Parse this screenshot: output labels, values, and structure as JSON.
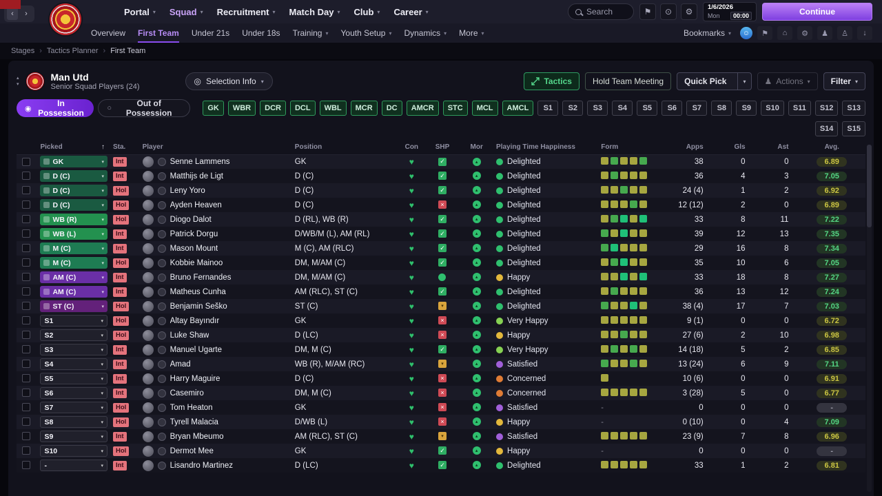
{
  "topbar": {
    "nav": [
      {
        "label": "Portal",
        "chevron": true
      },
      {
        "label": "Squad",
        "chevron": true,
        "active": true
      },
      {
        "label": "Recruitment",
        "chevron": true
      },
      {
        "label": "Match Day",
        "chevron": true
      },
      {
        "label": "Club",
        "chevron": true
      },
      {
        "label": "Career",
        "chevron": true
      }
    ],
    "search_placeholder": "Search",
    "icons": [
      "bookmark",
      "globe",
      "gear"
    ],
    "date": "1/6/2026",
    "day": "Mon",
    "time": "00:00",
    "continue_label": "Continue"
  },
  "subnav": {
    "items": [
      {
        "label": "Overview"
      },
      {
        "label": "First Team",
        "active": true
      },
      {
        "label": "Under 21s"
      },
      {
        "label": "Under 18s"
      },
      {
        "label": "Training",
        "chevron": true
      },
      {
        "label": "Youth Setup",
        "chevron": true
      },
      {
        "label": "Dynamics",
        "chevron": true
      },
      {
        "label": "More",
        "chevron": true
      }
    ],
    "bookmarks_label": "Bookmarks",
    "icons": [
      "face",
      "flag",
      "house",
      "gear",
      "people",
      "person",
      "download"
    ]
  },
  "breadcrumb": {
    "items": [
      "Stages",
      "Tactics Planner",
      "First Team"
    ]
  },
  "header": {
    "team_name": "Man Utd",
    "subtitle": "Senior Squad Players (24)",
    "selection_info_label": "Selection Info",
    "tactics_label": "Tactics",
    "hold_meeting_label": "Hold Team Meeting",
    "quick_pick_label": "Quick Pick",
    "actions_label": "Actions",
    "filter_label": "Filter"
  },
  "filters": {
    "in_possession_label": "In Possession",
    "out_of_possession_label": "Out of Possession",
    "positions": [
      "GK",
      "WBR",
      "DCR",
      "DCL",
      "WBL",
      "MCR",
      "DC",
      "AMCR",
      "STC",
      "MCL",
      "AMCL"
    ],
    "slots_row1": [
      "S1",
      "S2",
      "S3",
      "S4",
      "S5",
      "S6",
      "S7",
      "S8",
      "S9",
      "S10",
      "S11",
      "S12",
      "S13"
    ],
    "slots_row2": [
      "S14",
      "S15"
    ]
  },
  "colors": {
    "accent_purple": "#8a3df2",
    "accent_green": "#2f9e62",
    "status_badge": "#e4737c",
    "continue_top": "#bb80f6",
    "continue_bottom": "#7e3fe0"
  },
  "table": {
    "columns": [
      "Picked",
      "Sta.",
      "Player",
      "Position",
      "Con",
      "SHP",
      "Mor",
      "Playing Time Happiness",
      "Form",
      "Apps",
      "Gls",
      "Ast",
      "Avg."
    ],
    "rows": [
      {
        "picked": "GK",
        "picked_style": "gk",
        "sta": "Int",
        "player": "Senne Lammens",
        "position": "GK",
        "shp": "check",
        "happiness": "Delighted",
        "happiness_style": "delighted",
        "form": [
          "o",
          "g",
          "o",
          "o",
          "g"
        ],
        "apps": "38",
        "gls": "0",
        "ast": "0",
        "avg": "6.89",
        "avg_style": "olive"
      },
      {
        "picked": "D (C)",
        "picked_style": "def",
        "sta": "Int",
        "player": "Matthijs de Ligt",
        "position": "D (C)",
        "shp": "check",
        "happiness": "Delighted",
        "happiness_style": "delighted",
        "form": [
          "o",
          "g",
          "o",
          "o",
          "o"
        ],
        "apps": "36",
        "gls": "4",
        "ast": "3",
        "avg": "7.05",
        "avg_style": "green"
      },
      {
        "picked": "D (C)",
        "picked_style": "def",
        "sta": "Hol",
        "player": "Leny Yoro",
        "position": "D (C)",
        "shp": "check",
        "happiness": "Delighted",
        "happiness_style": "delighted",
        "form": [
          "o",
          "o",
          "g",
          "o",
          "o"
        ],
        "apps": "24 (4)",
        "gls": "1",
        "ast": "2",
        "avg": "6.92",
        "avg_style": "olive"
      },
      {
        "picked": "D (C)",
        "picked_style": "def",
        "sta": "Hol",
        "player": "Ayden Heaven",
        "position": "D (C)",
        "shp": "cross",
        "happiness": "Delighted",
        "happiness_style": "delighted",
        "form": [
          "o",
          "o",
          "o",
          "g",
          "o"
        ],
        "apps": "12 (12)",
        "gls": "2",
        "ast": "0",
        "avg": "6.89",
        "avg_style": "olive"
      },
      {
        "picked": "WB (R)",
        "picked_style": "wb",
        "sta": "Hol",
        "player": "Diogo Dalot",
        "position": "D (RL), WB (R)",
        "shp": "check",
        "happiness": "Delighted",
        "happiness_style": "delighted",
        "form": [
          "o",
          "g",
          "b",
          "o",
          "b"
        ],
        "apps": "33",
        "gls": "8",
        "ast": "11",
        "avg": "7.22",
        "avg_style": "green"
      },
      {
        "picked": "WB (L)",
        "picked_style": "wb",
        "sta": "Int",
        "player": "Patrick Dorgu",
        "position": "D/WB/M (L), AM (RL)",
        "shp": "check",
        "happiness": "Delighted",
        "happiness_style": "delighted",
        "form": [
          "g",
          "o",
          "b",
          "o",
          "o"
        ],
        "apps": "39",
        "gls": "12",
        "ast": "13",
        "avg": "7.35",
        "avg_style": "green"
      },
      {
        "picked": "M (C)",
        "picked_style": "mid",
        "sta": "Int",
        "player": "Mason Mount",
        "position": "M (C), AM (RLC)",
        "shp": "check",
        "happiness": "Delighted",
        "happiness_style": "delighted",
        "form": [
          "g",
          "b",
          "o",
          "o",
          "o"
        ],
        "apps": "29",
        "gls": "16",
        "ast": "8",
        "avg": "7.34",
        "avg_style": "green"
      },
      {
        "picked": "M (C)",
        "picked_style": "mid",
        "sta": "Hol",
        "player": "Kobbie Mainoo",
        "position": "DM, M/AM (C)",
        "shp": "check",
        "happiness": "Delighted",
        "happiness_style": "delighted",
        "form": [
          "o",
          "g",
          "b",
          "o",
          "o"
        ],
        "apps": "35",
        "gls": "10",
        "ast": "6",
        "avg": "7.05",
        "avg_style": "green"
      },
      {
        "picked": "AM (C)",
        "picked_style": "am",
        "sta": "Int",
        "player": "Bruno Fernandes",
        "position": "DM, M/AM (C)",
        "shp": "dot",
        "happiness": "Happy",
        "happiness_style": "happy",
        "form": [
          "o",
          "o",
          "b",
          "o",
          "b"
        ],
        "apps": "33",
        "gls": "18",
        "ast": "8",
        "avg": "7.27",
        "avg_style": "green"
      },
      {
        "picked": "AM (C)",
        "picked_style": "am",
        "sta": "Int",
        "player": "Matheus Cunha",
        "position": "AM (RLC), ST (C)",
        "shp": "check",
        "happiness": "Delighted",
        "happiness_style": "delighted",
        "form": [
          "o",
          "g",
          "o",
          "o",
          "o"
        ],
        "apps": "36",
        "gls": "13",
        "ast": "12",
        "avg": "7.24",
        "avg_style": "green"
      },
      {
        "picked": "ST (C)",
        "picked_style": "st",
        "sta": "Hol",
        "player": "Benjamin Šeško",
        "position": "ST (C)",
        "shp": "warn",
        "happiness": "Delighted",
        "happiness_style": "delighted",
        "form": [
          "g",
          "o",
          "o",
          "b",
          "o"
        ],
        "apps": "38 (4)",
        "gls": "17",
        "ast": "7",
        "avg": "7.03",
        "avg_style": "green"
      },
      {
        "picked": "S1",
        "picked_style": "sub",
        "sta": "Hol",
        "player": "Altay Bayındır",
        "position": "GK",
        "shp": "cross",
        "happiness": "Very Happy",
        "happiness_style": "very_happy",
        "form": [
          "o",
          "o",
          "o",
          "o",
          "o"
        ],
        "apps": "9 (1)",
        "gls": "0",
        "ast": "0",
        "avg": "6.72",
        "avg_style": "olive"
      },
      {
        "picked": "S2",
        "picked_style": "sub",
        "sta": "Hol",
        "player": "Luke Shaw",
        "position": "D (LC)",
        "shp": "cross",
        "happiness": "Happy",
        "happiness_style": "happy",
        "form": [
          "o",
          "o",
          "g",
          "o",
          "o"
        ],
        "apps": "27 (6)",
        "gls": "2",
        "ast": "10",
        "avg": "6.98",
        "avg_style": "olive"
      },
      {
        "picked": "S3",
        "picked_style": "sub",
        "sta": "Int",
        "player": "Manuel Ugarte",
        "position": "DM, M (C)",
        "shp": "check",
        "happiness": "Very Happy",
        "happiness_style": "very_happy",
        "form": [
          "o",
          "g",
          "o",
          "g",
          "o"
        ],
        "apps": "14 (18)",
        "gls": "5",
        "ast": "2",
        "avg": "6.85",
        "avg_style": "olive"
      },
      {
        "picked": "S4",
        "picked_style": "sub",
        "sta": "Int",
        "player": "Amad",
        "position": "WB (R), M/AM (RC)",
        "shp": "warn",
        "happiness": "Satisfied",
        "happiness_style": "satisfied",
        "form": [
          "g",
          "o",
          "o",
          "g",
          "o"
        ],
        "apps": "13 (24)",
        "gls": "6",
        "ast": "9",
        "avg": "7.11",
        "avg_style": "green"
      },
      {
        "picked": "S5",
        "picked_style": "sub",
        "sta": "Int",
        "player": "Harry Maguire",
        "position": "D (C)",
        "shp": "cross",
        "happiness": "Concerned",
        "happiness_style": "concerned",
        "form": [
          "o"
        ],
        "apps": "10 (6)",
        "gls": "0",
        "ast": "0",
        "avg": "6.91",
        "avg_style": "olive"
      },
      {
        "picked": "S6",
        "picked_style": "sub",
        "sta": "Int",
        "player": "Casemiro",
        "position": "DM, M (C)",
        "shp": "cross",
        "happiness": "Concerned",
        "happiness_style": "concerned",
        "form": [
          "o",
          "o",
          "o",
          "o",
          "o"
        ],
        "apps": "3 (28)",
        "gls": "5",
        "ast": "0",
        "avg": "6.77",
        "avg_style": "olive"
      },
      {
        "picked": "S7",
        "picked_style": "sub",
        "sta": "Hol",
        "player": "Tom Heaton",
        "position": "GK",
        "shp": "cross",
        "happiness": "Satisfied",
        "happiness_style": "satisfied",
        "form": [],
        "apps": "0",
        "gls": "0",
        "ast": "0",
        "avg": "-",
        "avg_style": "na"
      },
      {
        "picked": "S8",
        "picked_style": "sub",
        "sta": "Hol",
        "player": "Tyrell Malacia",
        "position": "D/WB (L)",
        "shp": "cross",
        "happiness": "Happy",
        "happiness_style": "happy",
        "form": [],
        "apps": "0 (10)",
        "gls": "0",
        "ast": "4",
        "avg": "7.09",
        "avg_style": "green"
      },
      {
        "picked": "S9",
        "picked_style": "sub",
        "sta": "Int",
        "player": "Bryan Mbeumo",
        "position": "AM (RLC), ST (C)",
        "shp": "warn",
        "happiness": "Satisfied",
        "happiness_style": "satisfied",
        "form": [
          "o",
          "o",
          "o",
          "o",
          "o"
        ],
        "apps": "23 (9)",
        "gls": "7",
        "ast": "8",
        "avg": "6.96",
        "avg_style": "olive"
      },
      {
        "picked": "S10",
        "picked_style": "sub",
        "sta": "Hol",
        "player": "Dermot Mee",
        "position": "GK",
        "shp": "check",
        "happiness": "Happy",
        "happiness_style": "happy",
        "form": [],
        "apps": "0",
        "gls": "0",
        "ast": "0",
        "avg": "-",
        "avg_style": "na"
      },
      {
        "picked": "-",
        "picked_style": "sub",
        "sta": "Int",
        "player": "Lisandro Martinez",
        "position": "D (LC)",
        "shp": "check",
        "happiness": "Delighted",
        "happiness_style": "delighted",
        "form": [
          "o",
          "o",
          "o",
          "o",
          "o"
        ],
        "apps": "33",
        "gls": "1",
        "ast": "2",
        "avg": "6.81",
        "avg_style": "olive"
      }
    ]
  }
}
